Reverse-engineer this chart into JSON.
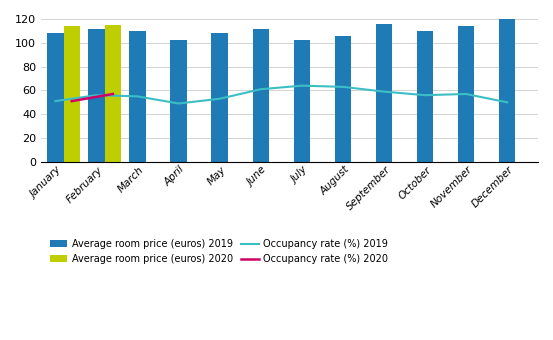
{
  "months": [
    "January",
    "February",
    "March",
    "April",
    "May",
    "June",
    "July",
    "August",
    "September",
    "October",
    "November",
    "December"
  ],
  "price_2019": [
    108,
    112,
    110,
    102,
    108,
    112,
    102,
    106,
    116,
    110,
    114,
    120
  ],
  "price_2020": [
    114,
    115,
    null,
    null,
    null,
    null,
    null,
    null,
    null,
    null,
    null,
    null
  ],
  "occupancy_2019": [
    51,
    56,
    55,
    49,
    53,
    61,
    64,
    63,
    59,
    56,
    57,
    50
  ],
  "occupancy_2020": [
    51,
    57,
    null,
    null,
    null,
    null,
    null,
    null,
    null,
    null,
    null,
    null
  ],
  "bar_color_2019": "#1F7BB5",
  "bar_color_2020": "#BFCE00",
  "line_color_2019": "#3CBFC4",
  "line_color_2020": "#CC0066",
  "ylim": [
    0,
    120
  ],
  "yticks": [
    0,
    20,
    40,
    60,
    80,
    100,
    120
  ],
  "legend_labels": [
    "Average room price (euros) 2019",
    "Average room price (euros) 2020",
    "Occupancy rate (%) 2019",
    "Occupancy rate (%) 2020"
  ],
  "bar_width": 0.4
}
